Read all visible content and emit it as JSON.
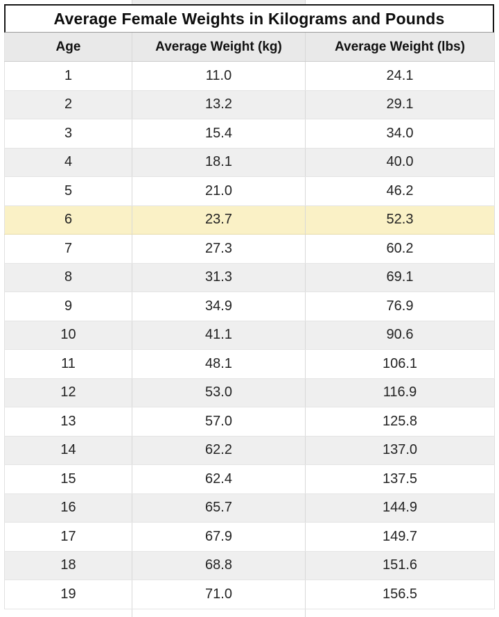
{
  "chart_data": {
    "type": "table",
    "title": "Average Female Weights in Kilograms and Pounds",
    "columns": [
      "Age",
      "Average Weight (kg)",
      "Average Weight (lbs)"
    ],
    "rows": [
      {
        "age": 1,
        "kg": "11.0",
        "lbs": "24.1"
      },
      {
        "age": 2,
        "kg": "13.2",
        "lbs": "29.1"
      },
      {
        "age": 3,
        "kg": "15.4",
        "lbs": "34.0"
      },
      {
        "age": 4,
        "kg": "18.1",
        "lbs": "40.0"
      },
      {
        "age": 5,
        "kg": "21.0",
        "lbs": "46.2"
      },
      {
        "age": 6,
        "kg": "23.7",
        "lbs": "52.3"
      },
      {
        "age": 7,
        "kg": "27.3",
        "lbs": "60.2"
      },
      {
        "age": 8,
        "kg": "31.3",
        "lbs": "69.1"
      },
      {
        "age": 9,
        "kg": "34.9",
        "lbs": "76.9"
      },
      {
        "age": 10,
        "kg": "41.1",
        "lbs": "90.6"
      },
      {
        "age": 11,
        "kg": "48.1",
        "lbs": "106.1"
      },
      {
        "age": 12,
        "kg": "53.0",
        "lbs": "116.9"
      },
      {
        "age": 13,
        "kg": "57.0",
        "lbs": "125.8"
      },
      {
        "age": 14,
        "kg": "62.2",
        "lbs": "137.0"
      },
      {
        "age": 15,
        "kg": "62.4",
        "lbs": "137.5"
      },
      {
        "age": 16,
        "kg": "65.7",
        "lbs": "144.9"
      },
      {
        "age": 17,
        "kg": "67.9",
        "lbs": "149.7"
      },
      {
        "age": 18,
        "kg": "68.8",
        "lbs": "151.6"
      },
      {
        "age": 19,
        "kg": "71.0",
        "lbs": "156.5"
      }
    ],
    "highlighted_age": 6,
    "layout": {
      "grid": true,
      "alternating_rows": true
    }
  },
  "colors": {
    "highlight_row": "#faf1c6",
    "alt_row": "#efefef",
    "header_bg": "#e9e9e9",
    "gridline": "#d8d8d8",
    "title_border": "#151515",
    "text": "#222222"
  }
}
